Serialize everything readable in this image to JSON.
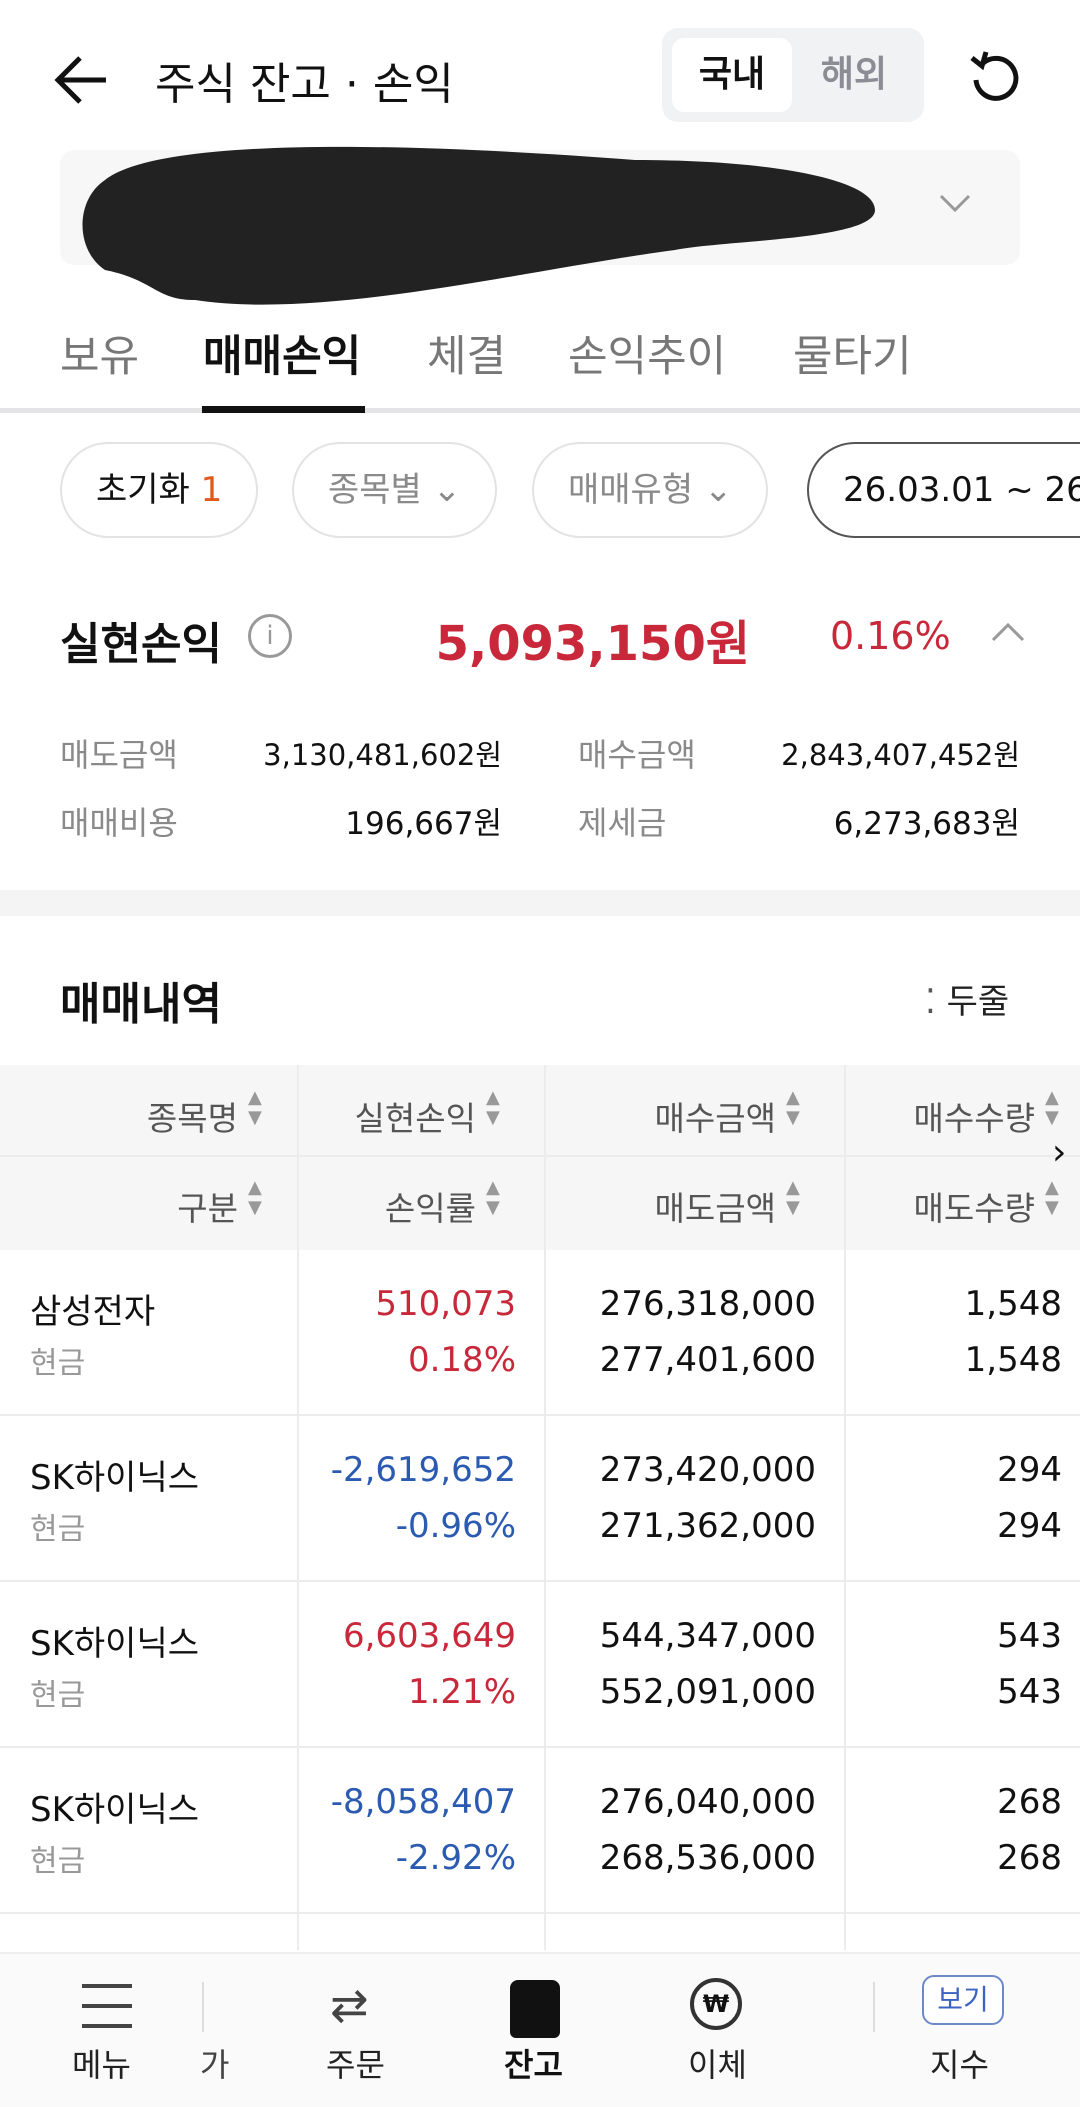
{
  "header": {
    "title": "주식 잔고 · 손익",
    "toggle": [
      "국내",
      "해외"
    ],
    "active_toggle": "국내"
  },
  "tabs": [
    {
      "label": "보유"
    },
    {
      "label": "매매손익",
      "active": true
    },
    {
      "label": "체결"
    },
    {
      "label": "손익추이"
    },
    {
      "label": "물타기"
    }
  ],
  "filters": {
    "reset": "초기화",
    "reset_count": "1",
    "by_item": "종목별",
    "trade_type": "매매유형",
    "date_range": "26.03.01 ~ 26"
  },
  "summary": {
    "label": "실현손익",
    "value": "5,093,150원",
    "rate": "0.16%",
    "details": [
      {
        "label": "매도금액",
        "value": "3,130,481,602원"
      },
      {
        "label": "매수금액",
        "value": "2,843,407,452원"
      },
      {
        "label": "매매비용",
        "value": "196,667원"
      },
      {
        "label": "제세금",
        "value": "6,273,683원"
      }
    ]
  },
  "history": {
    "title": "매매내역",
    "view_mode": "두줄",
    "headers_row1": [
      "종목명",
      "실현손익",
      "매수금액",
      "매수수량"
    ],
    "headers_row2": [
      "구분",
      "손익률",
      "매도금액",
      "매도수량"
    ],
    "rows": [
      {
        "name": "삼성전자",
        "type": "현금",
        "pnl": "510,073",
        "rate": "0.18%",
        "buy_amt": "276,318,000",
        "sell_amt": "277,401,600",
        "buy_qty": "1,548",
        "sell_qty": "1,548",
        "sign": "up"
      },
      {
        "name": "SK하이닉스",
        "type": "현금",
        "pnl": "-2,619,652",
        "rate": "-0.96%",
        "buy_amt": "273,420,000",
        "sell_amt": "271,362,000",
        "buy_qty": "294",
        "sell_qty": "294",
        "sign": "down"
      },
      {
        "name": "SK하이닉스",
        "type": "현금",
        "pnl": "6,603,649",
        "rate": "1.21%",
        "buy_amt": "544,347,000",
        "sell_amt": "552,091,000",
        "buy_qty": "543",
        "sell_qty": "543",
        "sign": "up"
      },
      {
        "name": "SK하이닉스",
        "type": "현금",
        "pnl": "-8,058,407",
        "rate": "-2.92%",
        "buy_amt": "276,040,000",
        "sell_amt": "268,536,000",
        "buy_qty": "268",
        "sell_qty": "268",
        "sign": "down"
      }
    ]
  },
  "bottom_nav": [
    {
      "label": "메뉴",
      "icon": "menu-icon"
    },
    {
      "label": "가"
    },
    {
      "label": "주문",
      "icon": "swap-icon"
    },
    {
      "label": "잔고",
      "icon": "balance-icon",
      "active": true
    },
    {
      "label": "이체",
      "icon": "transfer-won-icon"
    },
    {
      "label": "지수",
      "icon": "index-icon",
      "badge": "보기"
    }
  ],
  "colors": {
    "up": "#c8283a",
    "down": "#2b5ab1",
    "accent": "#e05a1a"
  }
}
